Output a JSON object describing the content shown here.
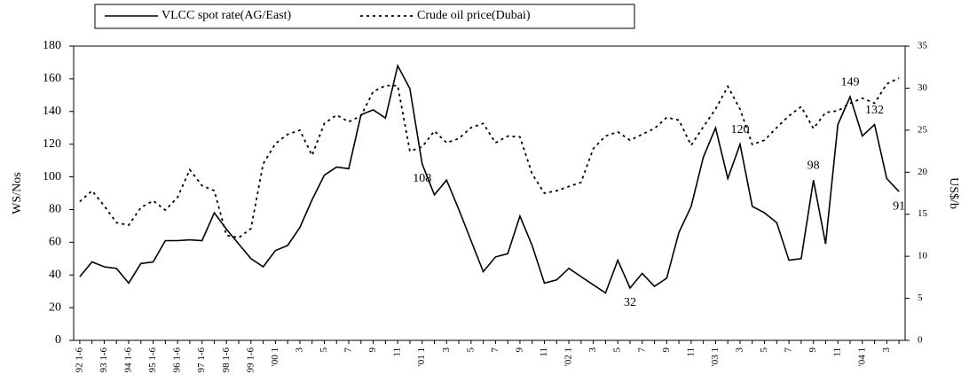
{
  "chart_data": {
    "type": "line",
    "categories": [
      "92 1-6",
      null,
      "93 1-6",
      null,
      "94 1-6",
      null,
      "95 1-6",
      null,
      "96 1-6",
      null,
      "97 1-6",
      null,
      "98 1-6",
      null,
      "99 1-6",
      null,
      "'00 1",
      null,
      "3",
      null,
      "5",
      null,
      "7",
      null,
      "9",
      null,
      "11",
      null,
      "'01 1",
      null,
      "3",
      null,
      "5",
      null,
      "7",
      null,
      "9",
      null,
      "11",
      null,
      "'02 1",
      null,
      "3",
      null,
      "5",
      null,
      "7",
      null,
      "9",
      null,
      "11",
      null,
      "'03 1",
      null,
      "3",
      null,
      "5",
      null,
      "7",
      null,
      "9",
      null,
      "11",
      null,
      "'04 1",
      null,
      "3",
      null
    ],
    "series": [
      {
        "name": "VLCC spot rate(AG/East)",
        "color": "#000000",
        "dash": "solid",
        "values": [
          39,
          48,
          45,
          44,
          35,
          47,
          48,
          61,
          61,
          61.5,
          61,
          78,
          68,
          59,
          50,
          45,
          55,
          58,
          69,
          86,
          101,
          106,
          105,
          138,
          141,
          136,
          168,
          154,
          108,
          89,
          98,
          80,
          61,
          42,
          51,
          53,
          76,
          58,
          35,
          37,
          44,
          39,
          34,
          29,
          49,
          32,
          41,
          33,
          38,
          66,
          82,
          112,
          130,
          99,
          120,
          82,
          78,
          72,
          49,
          50,
          98,
          59,
          132,
          149,
          125,
          132,
          99,
          91
        ],
        "value_labels": [
          null,
          null,
          null,
          null,
          null,
          null,
          null,
          null,
          null,
          null,
          null,
          null,
          null,
          null,
          null,
          null,
          null,
          null,
          null,
          null,
          null,
          null,
          null,
          null,
          null,
          null,
          null,
          null,
          "108",
          null,
          null,
          null,
          null,
          null,
          null,
          null,
          null,
          null,
          null,
          null,
          null,
          null,
          null,
          null,
          null,
          "32",
          null,
          null,
          null,
          null,
          null,
          null,
          null,
          null,
          "120",
          null,
          null,
          null,
          null,
          null,
          "98",
          null,
          null,
          "149",
          null,
          "132",
          null,
          "91"
        ]
      },
      {
        "name": "Crude oil price(Dubai)",
        "color": "#000000",
        "dash": "dotted",
        "axis": "y2",
        "values": [
          16.5,
          17.8,
          16,
          14,
          13.7,
          15.8,
          16.6,
          15.5,
          17,
          20.3,
          18.4,
          17.8,
          12.5,
          12.2,
          13.3,
          21,
          23.4,
          24.5,
          25,
          22,
          25.8,
          26.8,
          26,
          26.7,
          29.6,
          30.3,
          30.3,
          22.5,
          23,
          24.9,
          23.5,
          24,
          25.3,
          25.8,
          23.5,
          24.3,
          24.2,
          19.8,
          17.5,
          17.8,
          18.3,
          18.8,
          22.8,
          24.3,
          24.8,
          23.8,
          24.5,
          25.2,
          26.5,
          26.2,
          23.2,
          25.4,
          27.5,
          30.2,
          27.5,
          23.3,
          23.8,
          25.3,
          26.7,
          27.8,
          25.2,
          27.1,
          27.3,
          28.2,
          28.8,
          28.2,
          30.5,
          31.2
        ]
      }
    ],
    "ylabel": "WS/Nos",
    "y2label": "US$/b",
    "ylim": [
      0,
      180
    ],
    "yticks": [
      0,
      20,
      40,
      60,
      80,
      100,
      120,
      140,
      160,
      180
    ],
    "y2lim": [
      0,
      35
    ],
    "y2ticks": [
      0,
      5,
      10,
      15,
      20,
      25,
      30,
      35
    ],
    "grid": false,
    "legend": "top"
  }
}
